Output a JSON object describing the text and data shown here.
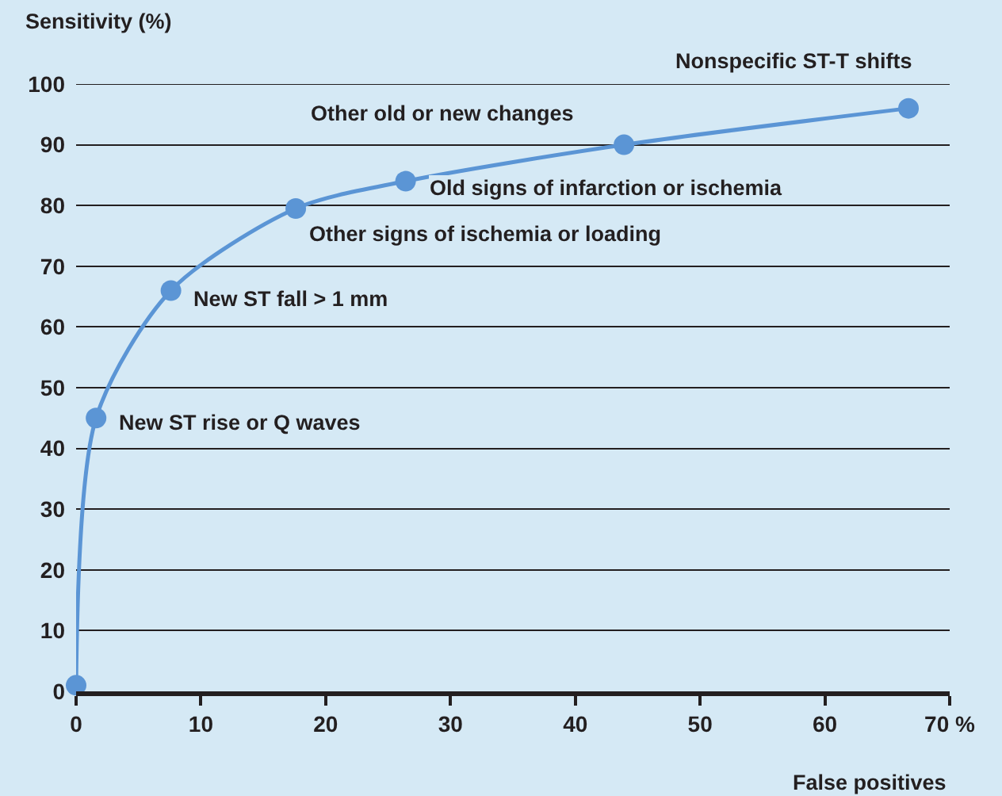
{
  "chart_data": {
    "type": "line",
    "xlabel": "False positives",
    "ylabel": "Sensitivity (%)",
    "x": [
      0,
      1.6,
      7.6,
      17.6,
      26.4,
      43.9,
      66.7
    ],
    "series": [
      {
        "color": "#5b95d5",
        "values": [
          1,
          45,
          66,
          79.5,
          84,
          90,
          96
        ]
      }
    ],
    "xlim": [
      0,
      70
    ],
    "xticks": [
      0,
      10,
      20,
      30,
      40,
      50,
      60,
      {
        "value": 70,
        "label": "70 %"
      }
    ],
    "ylim": [
      0,
      100
    ],
    "yticks": [
      0,
      10,
      20,
      30,
      40,
      50,
      60,
      70,
      80,
      90,
      100
    ],
    "grid": "y",
    "marker": "circle",
    "line_style": "solid",
    "annotations": [
      {
        "text": "New ST rise or Q waves",
        "x": 1.6,
        "y": 45
      },
      {
        "text": "New ST fall > 1 mm",
        "x": 7.6,
        "y": 66
      },
      {
        "text": "Other signs of ischemia or loading",
        "x": 17.6,
        "y": 79.5
      },
      {
        "text": "Old signs of infarction or ischemia",
        "x": 26.4,
        "y": 84
      },
      {
        "text": "Other old or new changes",
        "x": 43.9,
        "y": 90
      },
      {
        "text": "Nonspecific ST-T shifts",
        "x": 66.7,
        "y": 96
      }
    ]
  }
}
